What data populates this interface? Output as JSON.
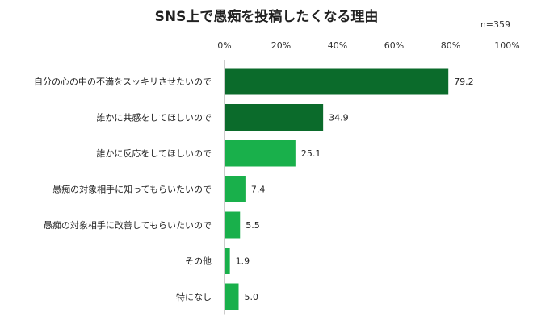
{
  "chart_data": {
    "type": "bar",
    "orientation": "horizontal",
    "title": "SNS上で愚痴を投稿したくなる理由",
    "note": "n=359",
    "xlim": [
      0,
      100
    ],
    "xticks": [
      "0%",
      "20%",
      "40%",
      "60%",
      "80%",
      "100%"
    ],
    "grid": false,
    "categories": [
      "自分の心の中の不満をスッキリさせたいので",
      "誰かに共感をしてほしいので",
      "誰かに反応をしてほしいので",
      "愚痴の対象相手に知ってもらいたいので",
      "愚痴の対象相手に改善してもらいたいので",
      "その他",
      "特になし"
    ],
    "values": [
      79.2,
      34.9,
      25.1,
      7.4,
      5.5,
      1.9,
      5.0
    ],
    "value_labels": [
      "79.2",
      "34.9",
      "25.1",
      "7.4",
      "5.5",
      "1.9",
      "5.0"
    ],
    "colors": {
      "dark_green": "#0b6b2b",
      "light_green": "#19b04b"
    },
    "bar_colors": [
      "#0b6b2b",
      "#0b6b2b",
      "#19b04b",
      "#19b04b",
      "#19b04b",
      "#19b04b",
      "#19b04b"
    ]
  }
}
